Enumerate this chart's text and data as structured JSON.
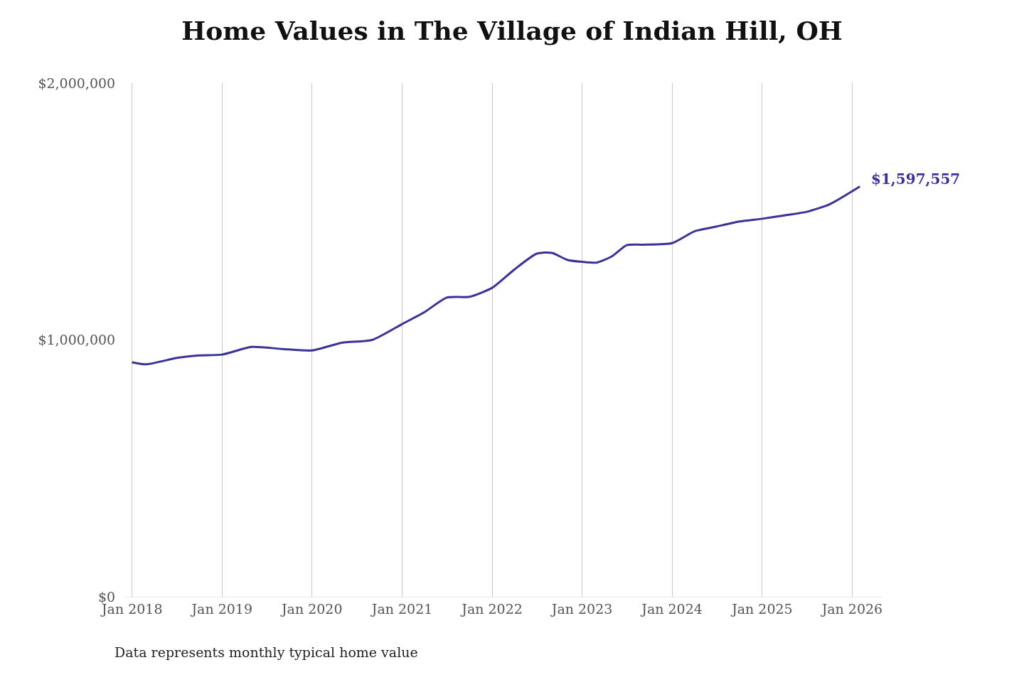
{
  "chart_data": {
    "type": "line",
    "title": "Home Values in The Village of Indian Hill, OH",
    "x": [
      "2018-01",
      "2018-03",
      "2018-07",
      "2018-10",
      "2019-01",
      "2019-05",
      "2019-09",
      "2020-01",
      "2020-05",
      "2020-09",
      "2021-01",
      "2021-04",
      "2021-07",
      "2021-10",
      "2022-01",
      "2022-04",
      "2022-07",
      "2022-09",
      "2022-11",
      "2023-01",
      "2023-03",
      "2023-05",
      "2023-07",
      "2023-09",
      "2024-01",
      "2024-04",
      "2024-07",
      "2024-10",
      "2025-01",
      "2025-04",
      "2025-07",
      "2025-10",
      "2026-02"
    ],
    "series": [
      {
        "color": "#3a3397",
        "values": [
          913000,
          905000,
          930000,
          940000,
          943000,
          973000,
          965000,
          959000,
          989000,
          1000000,
          1062000,
          1108000,
          1165000,
          1168000,
          1203000,
          1274000,
          1336000,
          1339000,
          1312000,
          1304000,
          1301000,
          1325000,
          1369000,
          1371000,
          1377000,
          1423000,
          1442000,
          1461000,
          1472000,
          1485000,
          1499000,
          1528000,
          1597557
        ]
      }
    ],
    "ylim": [
      0,
      2000000
    ],
    "yticks": [
      {
        "value": 0,
        "label": "$0"
      },
      {
        "value": 1000000,
        "label": "$1,000,000"
      },
      {
        "value": 2000000,
        "label": "$2,000,000"
      }
    ],
    "xticks": [
      {
        "value": "2018-01",
        "label": "Jan 2018"
      },
      {
        "value": "2019-01",
        "label": "Jan 2019"
      },
      {
        "value": "2020-01",
        "label": "Jan 2020"
      },
      {
        "value": "2021-01",
        "label": "Jan 2021"
      },
      {
        "value": "2022-01",
        "label": "Jan 2022"
      },
      {
        "value": "2023-01",
        "label": "Jan 2023"
      },
      {
        "value": "2024-01",
        "label": "Jan 2024"
      },
      {
        "value": "2025-01",
        "label": "Jan 2025"
      },
      {
        "value": "2026-01",
        "label": "Jan 2026"
      }
    ],
    "xlim": [
      "2017-12",
      "2026-05"
    ],
    "grid": "x",
    "annotations": [
      {
        "text": "$1,597,557",
        "x": "2026-02",
        "y": 1597557
      },
      "Data represents monthly typical home value"
    ]
  }
}
